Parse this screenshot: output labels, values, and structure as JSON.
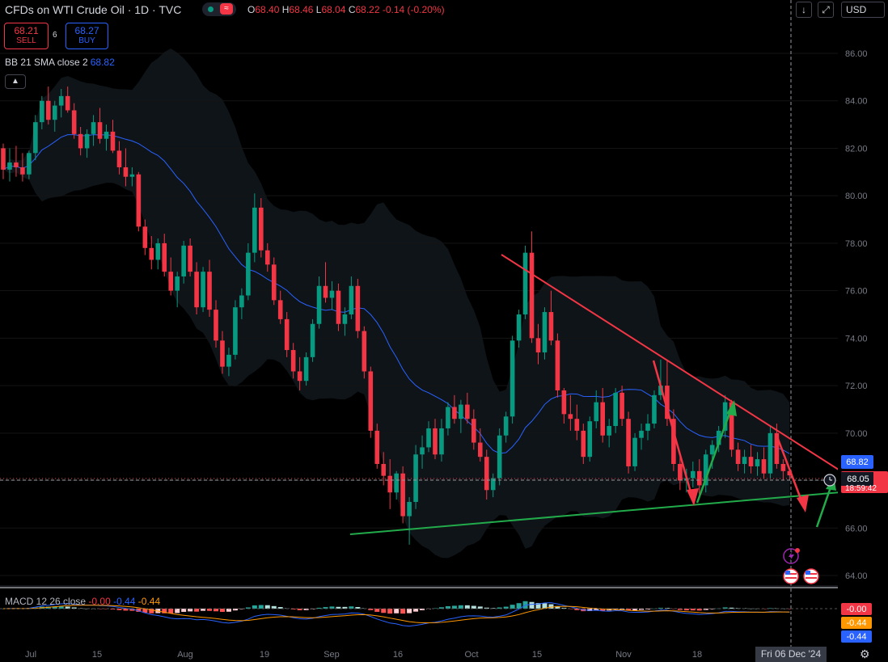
{
  "header": {
    "title": "CFDs on WTI Crude Oil · 1D · TVC",
    "open_label": "O",
    "open": "68.40",
    "high_label": "H",
    "high": "68.46",
    "low_label": "L",
    "low": "68.04",
    "close_label": "C",
    "close": "68.22",
    "change": "-0.14 (-0.20%)"
  },
  "trade": {
    "sell_price": "68.21",
    "sell_label": "SELL",
    "spread": "6",
    "buy_price": "68.27",
    "buy_label": "BUY"
  },
  "bb_legend": {
    "label": "BB 21 SMA close 2",
    "value": "68.82"
  },
  "toolbar": {
    "currency": "USD"
  },
  "macd_legend": {
    "label": "MACD 12 26 close",
    "hist": "-0.00",
    "macd": "-0.44",
    "signal": "-0.44"
  },
  "crosshair_date": "Fri 06 Dec '24",
  "colors": {
    "up": "#089981",
    "down": "#f23645",
    "bb_mid": "#2962ff",
    "signal": "#ff9800",
    "resistance": "#f23645",
    "support": "#22ab4a"
  },
  "icons": [
    "download-icon",
    "fullscreen-icon",
    "collapse-chevron-icon",
    "alert-flash-icon",
    "us-flag-icon",
    "settings-icon",
    "clock-icon"
  ],
  "chart_data": {
    "type": "candlestick",
    "y_axis": {
      "ticks": [
        "86.00",
        "84.00",
        "82.00",
        "80.00",
        "78.00",
        "76.00",
        "74.00",
        "72.00",
        "70.00",
        "68.00",
        "66.00",
        "64.00"
      ],
      "range": [
        63.5,
        87
      ]
    },
    "x_axis": {
      "ticks": [
        "Jul",
        "15",
        "Aug",
        "19",
        "Sep",
        "16",
        "Oct",
        "15",
        "Nov",
        "18",
        "Dec"
      ]
    },
    "price_labels": {
      "bb_basis": "68.82",
      "last": "68.05",
      "partial": "18:59:42"
    },
    "macd_labels": {
      "hist": "-0.00",
      "macd": "-0.44",
      "signal": "-0.44"
    },
    "candles": [
      [
        82.0,
        82.2,
        80.7,
        81.1
      ],
      [
        81.1,
        82.0,
        80.6,
        81.4
      ],
      [
        81.4,
        82.1,
        80.8,
        81.2
      ],
      [
        81.2,
        81.8,
        80.6,
        80.9
      ],
      [
        80.9,
        81.9,
        80.7,
        81.8
      ],
      [
        81.8,
        83.4,
        81.5,
        83.1
      ],
      [
        83.1,
        84.2,
        82.8,
        84.0
      ],
      [
        84.0,
        84.6,
        83.0,
        83.2
      ],
      [
        83.2,
        84.0,
        82.7,
        83.8
      ],
      [
        83.8,
        84.5,
        83.3,
        84.2
      ],
      [
        84.2,
        84.6,
        83.5,
        83.6
      ],
      [
        83.6,
        83.9,
        82.4,
        82.6
      ],
      [
        82.6,
        82.9,
        81.7,
        82.0
      ],
      [
        82.0,
        82.8,
        81.6,
        82.6
      ],
      [
        82.6,
        83.4,
        82.1,
        83.1
      ],
      [
        83.1,
        83.7,
        82.2,
        82.4
      ],
      [
        82.4,
        83.0,
        81.9,
        82.7
      ],
      [
        82.7,
        83.2,
        81.8,
        81.9
      ],
      [
        81.9,
        82.3,
        80.9,
        81.2
      ],
      [
        81.2,
        82.0,
        80.4,
        80.8
      ],
      [
        80.8,
        81.2,
        80.4,
        80.9
      ],
      [
        80.9,
        81.0,
        78.5,
        78.7
      ],
      [
        78.7,
        79.0,
        77.5,
        77.8
      ],
      [
        77.8,
        78.3,
        76.9,
        77.3
      ],
      [
        77.3,
        78.2,
        76.9,
        78.0
      ],
      [
        78.0,
        78.4,
        76.6,
        76.8
      ],
      [
        76.8,
        77.4,
        75.8,
        76.0
      ],
      [
        76.0,
        76.8,
        75.3,
        76.6
      ],
      [
        76.6,
        78.1,
        76.3,
        77.9
      ],
      [
        77.9,
        78.2,
        76.6,
        76.8
      ],
      [
        76.8,
        77.2,
        75.0,
        75.3
      ],
      [
        75.3,
        77.0,
        75.1,
        76.8
      ],
      [
        76.8,
        77.3,
        74.9,
        75.2
      ],
      [
        75.2,
        75.6,
        73.6,
        73.9
      ],
      [
        73.9,
        74.3,
        72.5,
        72.8
      ],
      [
        72.8,
        73.6,
        72.4,
        73.3
      ],
      [
        73.3,
        75.6,
        73.1,
        75.3
      ],
      [
        75.3,
        76.1,
        74.8,
        75.8
      ],
      [
        75.8,
        78.0,
        75.6,
        77.6
      ],
      [
        77.6,
        80.1,
        77.2,
        79.5
      ],
      [
        79.5,
        79.9,
        77.4,
        77.7
      ],
      [
        77.7,
        78.0,
        76.8,
        77.1
      ],
      [
        77.1,
        77.4,
        75.4,
        75.6
      ],
      [
        75.6,
        76.0,
        74.6,
        74.8
      ],
      [
        74.8,
        75.1,
        73.2,
        73.5
      ],
      [
        73.5,
        73.8,
        72.3,
        72.6
      ],
      [
        72.6,
        73.2,
        71.8,
        72.2
      ],
      [
        72.2,
        73.4,
        72.0,
        73.2
      ],
      [
        73.2,
        74.8,
        73.0,
        74.6
      ],
      [
        74.6,
        76.6,
        74.4,
        76.2
      ],
      [
        76.2,
        77.2,
        75.5,
        75.7
      ],
      [
        75.7,
        76.4,
        75.2,
        76.0
      ],
      [
        76.0,
        76.3,
        74.3,
        74.6
      ],
      [
        74.6,
        75.3,
        74.1,
        75.0
      ],
      [
        75.0,
        76.6,
        74.8,
        76.2
      ],
      [
        76.2,
        76.5,
        74.0,
        74.3
      ],
      [
        74.3,
        74.5,
        72.3,
        72.6
      ],
      [
        72.6,
        72.8,
        69.8,
        70.1
      ],
      [
        70.1,
        70.4,
        68.5,
        68.7
      ],
      [
        68.7,
        69.2,
        67.8,
        68.2
      ],
      [
        68.2,
        68.9,
        66.8,
        67.5
      ],
      [
        67.5,
        68.4,
        67.2,
        68.3
      ],
      [
        68.3,
        68.6,
        66.2,
        66.5
      ],
      [
        66.5,
        67.3,
        65.3,
        67.1
      ],
      [
        67.1,
        69.5,
        66.8,
        69.1
      ],
      [
        69.1,
        69.9,
        68.5,
        69.4
      ],
      [
        69.4,
        70.5,
        69.2,
        70.2
      ],
      [
        70.2,
        70.6,
        68.9,
        69.1
      ],
      [
        69.1,
        70.6,
        68.8,
        70.2
      ],
      [
        70.2,
        71.3,
        69.9,
        71.1
      ],
      [
        71.1,
        71.6,
        70.4,
        70.6
      ],
      [
        70.6,
        71.4,
        70.0,
        71.2
      ],
      [
        71.2,
        71.7,
        70.4,
        70.6
      ],
      [
        70.6,
        71.0,
        69.3,
        69.6
      ],
      [
        69.6,
        70.2,
        68.8,
        69.0
      ],
      [
        69.0,
        69.3,
        67.2,
        67.6
      ],
      [
        67.6,
        68.3,
        67.3,
        68.1
      ],
      [
        68.1,
        70.2,
        67.8,
        69.9
      ],
      [
        69.9,
        70.9,
        69.6,
        70.7
      ],
      [
        70.7,
        74.1,
        70.4,
        73.9
      ],
      [
        73.9,
        75.2,
        73.6,
        75.0
      ],
      [
        75.0,
        77.9,
        74.8,
        77.6
      ],
      [
        77.6,
        78.5,
        73.8,
        74.0
      ],
      [
        74.0,
        74.6,
        72.9,
        73.4
      ],
      [
        73.4,
        75.3,
        73.1,
        75.1
      ],
      [
        75.1,
        76.0,
        73.7,
        73.9
      ],
      [
        73.9,
        74.2,
        71.5,
        71.8
      ],
      [
        71.8,
        71.9,
        70.4,
        70.8
      ],
      [
        70.8,
        71.6,
        70.1,
        70.6
      ],
      [
        70.6,
        71.2,
        69.7,
        70.1
      ],
      [
        70.1,
        70.4,
        68.7,
        69.0
      ],
      [
        69.0,
        70.7,
        68.8,
        70.5
      ],
      [
        70.5,
        71.8,
        70.2,
        71.3
      ],
      [
        71.3,
        71.9,
        69.6,
        69.9
      ],
      [
        69.9,
        70.6,
        69.4,
        70.3
      ],
      [
        70.3,
        71.9,
        70.0,
        71.7
      ],
      [
        71.7,
        72.0,
        70.3,
        70.6
      ],
      [
        70.6,
        70.9,
        68.3,
        68.6
      ],
      [
        68.6,
        70.0,
        68.4,
        69.8
      ],
      [
        69.8,
        70.4,
        69.3,
        70.1
      ],
      [
        70.1,
        70.8,
        69.7,
        70.4
      ],
      [
        70.4,
        71.8,
        70.2,
        71.6
      ],
      [
        71.6,
        73.1,
        71.4,
        72.0
      ],
      [
        72.0,
        73.1,
        70.3,
        70.6
      ],
      [
        70.6,
        71.0,
        68.4,
        68.7
      ],
      [
        68.7,
        69.1,
        67.6,
        68.0
      ],
      [
        68.0,
        68.5,
        67.5,
        68.1
      ],
      [
        68.1,
        68.8,
        67.7,
        68.4
      ],
      [
        68.4,
        68.9,
        67.3,
        67.8
      ],
      [
        67.8,
        69.3,
        67.5,
        69.1
      ],
      [
        69.1,
        69.7,
        68.5,
        69.5
      ],
      [
        69.5,
        70.3,
        69.2,
        70.1
      ],
      [
        70.1,
        71.6,
        69.8,
        71.3
      ],
      [
        71.3,
        71.4,
        69.0,
        69.3
      ],
      [
        69.3,
        69.6,
        68.4,
        68.7
      ],
      [
        68.7,
        69.3,
        68.3,
        69.0
      ],
      [
        69.0,
        69.5,
        68.3,
        68.6
      ],
      [
        68.6,
        69.2,
        68.2,
        68.9
      ],
      [
        68.9,
        69.4,
        68.1,
        68.3
      ],
      [
        68.3,
        70.3,
        68.1,
        70.0
      ],
      [
        70.0,
        70.4,
        68.5,
        68.7
      ],
      [
        68.7,
        68.9,
        68.0,
        68.4
      ],
      [
        68.4,
        68.5,
        68.0,
        68.22
      ]
    ]
  }
}
